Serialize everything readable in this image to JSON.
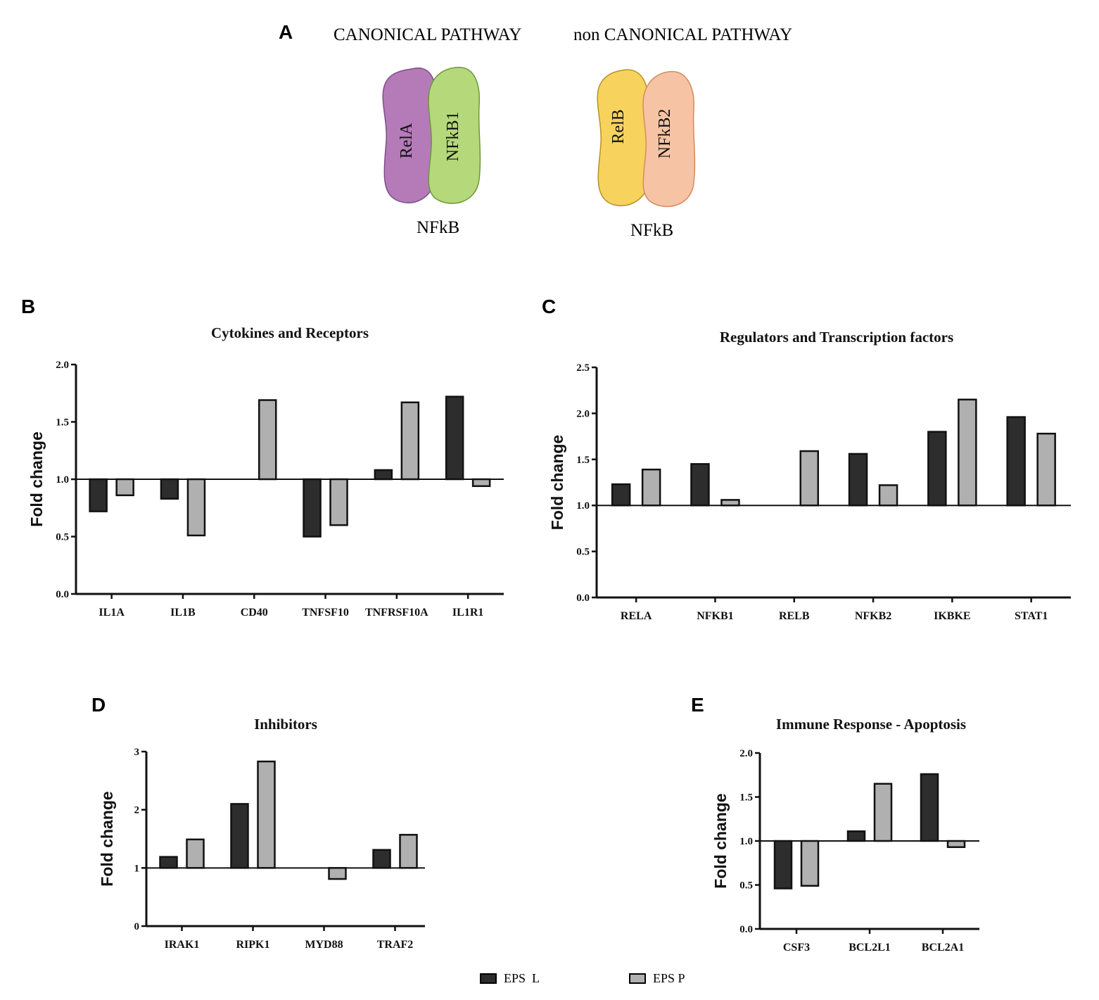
{
  "panel_a": {
    "letter": "A",
    "canonical_title": "CANONICAL PATHWAY",
    "noncanonical_title": "non CANONICAL PATHWAY",
    "canonical": {
      "left_subunit": "RelA",
      "right_subunit": "NFkB1",
      "complex_label": "NFkB",
      "left_color": "#b57ab8",
      "right_color": "#b5d97a"
    },
    "noncanonical": {
      "left_subunit": "RelB",
      "right_subunit": "NFkB2",
      "complex_label": "NFkB",
      "left_color": "#f7d35e",
      "right_color": "#f6c4a4"
    }
  },
  "colors": {
    "eps_l": "#2d2d2d",
    "eps_p": "#b0b0b0"
  },
  "legend": {
    "eps_l": "EPS  L",
    "eps_p": "EPS P"
  },
  "chart_data": [
    {
      "id": "B",
      "letter": "B",
      "type": "bar",
      "title": "Cytokines and Receptors",
      "ylabel": "Fold change",
      "baseline": 1.0,
      "ylim": [
        0,
        2.0
      ],
      "yticks": [
        "0.0",
        "0.5",
        "1.0",
        "1.5",
        "2.0"
      ],
      "categories": [
        "IL1A",
        "IL1B",
        "CD40",
        "TNFSF10",
        "TNFRSF10A",
        "IL1R1"
      ],
      "series": [
        {
          "name": "EPS  L",
          "values": [
            0.72,
            0.83,
            null,
            0.5,
            1.08,
            1.72
          ]
        },
        {
          "name": "EPS P",
          "values": [
            0.86,
            0.51,
            1.69,
            0.6,
            1.67,
            0.94
          ]
        }
      ]
    },
    {
      "id": "C",
      "letter": "C",
      "type": "bar",
      "title": "Regulators and Transcription factors",
      "ylabel": "Fold change",
      "baseline": 1.0,
      "ylim": [
        0,
        2.5
      ],
      "yticks": [
        "0.0",
        "0.5",
        "1.0",
        "1.5",
        "2.0",
        "2.5"
      ],
      "categories": [
        "RELA",
        "NFKB1",
        "RELB",
        "NFKB2",
        "IKBKE",
        "STAT1"
      ],
      "series": [
        {
          "name": "EPS  L",
          "values": [
            1.23,
            1.45,
            null,
            1.56,
            1.8,
            1.96
          ]
        },
        {
          "name": "EPS P",
          "values": [
            1.39,
            1.06,
            1.59,
            1.22,
            2.15,
            1.78
          ]
        }
      ]
    },
    {
      "id": "D",
      "letter": "D",
      "type": "bar",
      "title": "Inhibitors",
      "ylabel": "Fold change",
      "baseline": 1.0,
      "ylim": [
        0,
        3
      ],
      "yticks": [
        "0",
        "1",
        "2",
        "3"
      ],
      "categories": [
        "IRAK1",
        "RIPK1",
        "MYD88",
        "TRAF2"
      ],
      "series": [
        {
          "name": "EPS  L",
          "values": [
            1.19,
            2.1,
            null,
            1.31
          ]
        },
        {
          "name": "EPS P",
          "values": [
            1.49,
            2.83,
            0.81,
            1.57
          ]
        }
      ]
    },
    {
      "id": "E",
      "letter": "E",
      "type": "bar",
      "title": "Immune Response - Apoptosis",
      "ylabel": "Fold change",
      "baseline": 1.0,
      "ylim": [
        0,
        2.0
      ],
      "yticks": [
        "0.0",
        "0.5",
        "1.0",
        "1.5",
        "2.0"
      ],
      "categories": [
        "CSF3",
        "BCL2L1",
        "BCL2A1"
      ],
      "series": [
        {
          "name": "EPS  L",
          "values": [
            0.46,
            1.11,
            1.76
          ]
        },
        {
          "name": "EPS P",
          "values": [
            0.49,
            1.65,
            0.93
          ]
        }
      ]
    }
  ]
}
